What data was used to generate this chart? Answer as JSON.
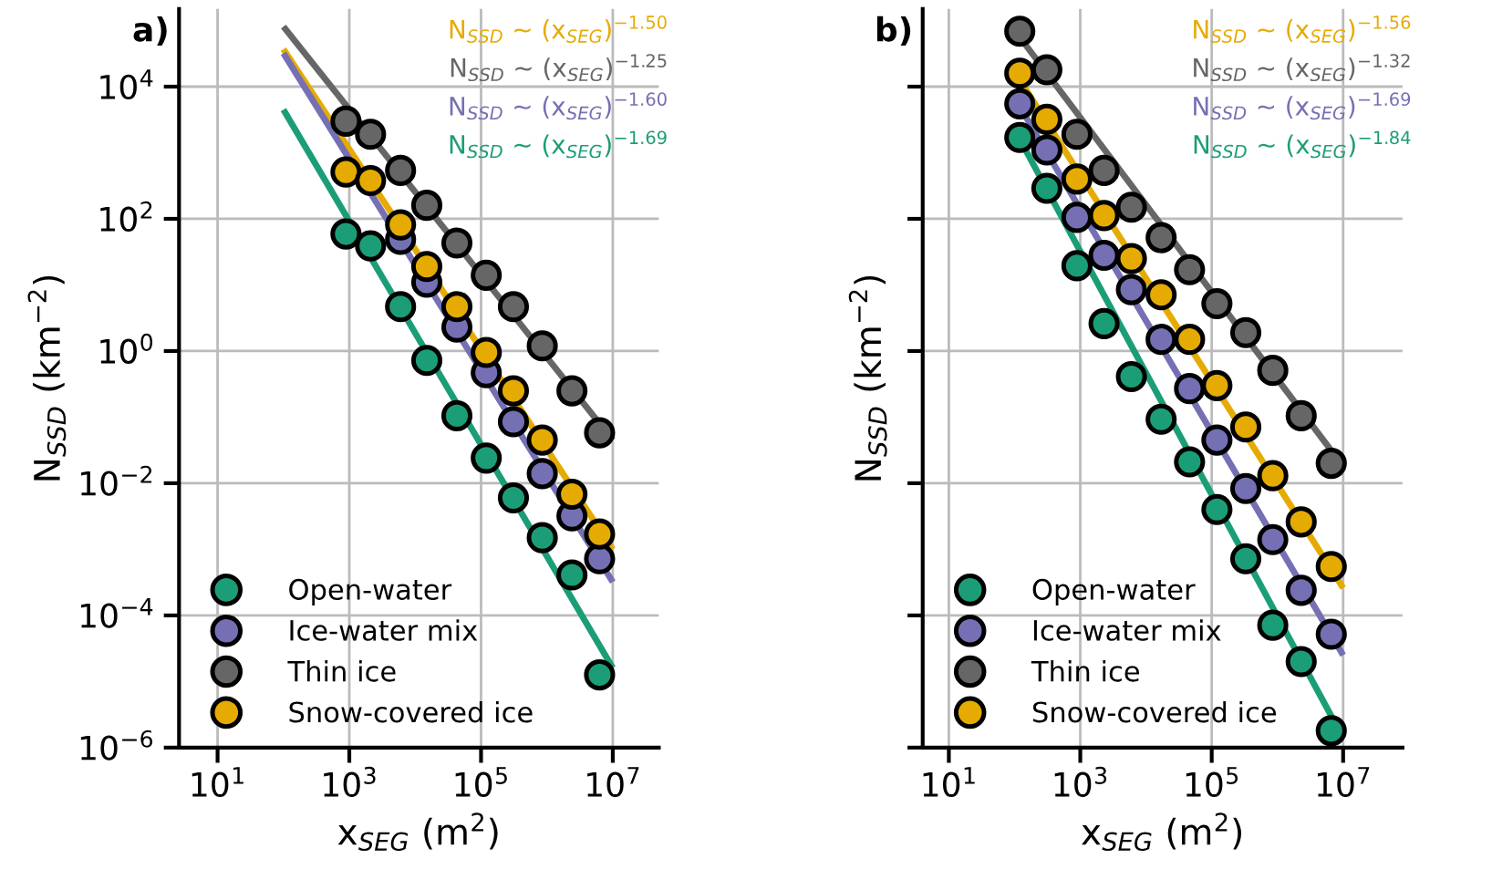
{
  "chart_data": [
    {
      "type": "scatter",
      "title": "a)",
      "xlabel": "x$_{SEG}$ (m$^{2}$)",
      "ylabel": "N$_{SSD}$ (km$^{−2}$)",
      "log": "xy",
      "grid": true,
      "legend": "bottom left",
      "marker": "circle",
      "x": [
        890,
        2100,
        6000,
        15000,
        43000,
        120000,
        310000,
        850000,
        2400000,
        6300000
      ],
      "xlim": [
        2.6,
        50000000
      ],
      "ylim": [
        1e-06,
        150000
      ],
      "xticks": [
        {
          "value": 10,
          "label": "10$^{1}$"
        },
        {
          "value": 1000,
          "label": "10$^{3}$"
        },
        {
          "value": 100000,
          "label": "10$^{5}$"
        },
        {
          "value": 10000000,
          "label": "10$^{7}$"
        }
      ],
      "yticks": [
        {
          "value": 1e-06,
          "label": "10$^{−6}$"
        },
        {
          "value": 0.0001,
          "label": "10$^{−4}$"
        },
        {
          "value": 0.01,
          "label": "10$^{−2}$"
        },
        {
          "value": 1,
          "label": "10$^{0}$"
        },
        {
          "value": 100,
          "label": "10$^{2}$"
        },
        {
          "value": 10000,
          "label": "10$^{4}$"
        }
      ],
      "series": [
        {
          "name": "Open-water",
          "color": "#1b9e77",
          "values": [
            59,
            39,
            4.7,
            0.72,
            0.105,
            0.024,
            0.006,
            0.0015,
            0.00041,
            1.26e-05
          ]
        },
        {
          "name": "Ice-water mix",
          "color": "#7570b3",
          "values": [
            null,
            null,
            49,
            11,
            2.3,
            0.47,
            0.085,
            0.014,
            0.0032,
            0.00072
          ]
        },
        {
          "name": "Thin ice",
          "color": "#666666",
          "values": [
            3000,
            1900,
            540,
            160,
            43,
            14,
            4.7,
            1.2,
            0.25,
            0.058
          ]
        },
        {
          "name": "Snow-covered ice",
          "color": "#e6ab02",
          "values": [
            510,
            380,
            81,
            19,
            4.7,
            0.95,
            0.25,
            0.045,
            0.0068,
            0.0017
          ]
        },
        {
          "type": "line",
          "marker": "none",
          "color": "#e6ab02",
          "x": [
            100,
            10000000
          ],
          "values": [
            37000,
            0.001
          ]
        },
        {
          "type": "line",
          "marker": "none",
          "color": "#666666",
          "x": [
            100,
            10000000
          ],
          "values": [
            81000,
            0.045
          ]
        },
        {
          "type": "line",
          "marker": "none",
          "color": "#7570b3",
          "x": [
            100,
            10000000
          ],
          "values": [
            32000,
            0.00032
          ]
        },
        {
          "type": "line",
          "marker": "none",
          "color": "#1b9e77",
          "x": [
            100,
            10000000
          ],
          "values": [
            4500,
            1.6e-05
          ]
        }
      ],
      "annotations": [
        "N$_{SSD}$ ~ (x$_{SEG}$)$^{−1.50}$",
        "N$_{SSD}$ ~ (x$_{SEG}$)$^{−1.25}$",
        "N$_{SSD}$ ~ (x$_{SEG}$)$^{−1.60}$",
        "N$_{SSD}$ ~ (x$_{SEG}$)$^{−1.69}$"
      ]
    },
    {
      "type": "scatter",
      "title": "b)",
      "xlabel": "x$_{SEG}$ (m$^{2}$)",
      "ylabel": "N$_{SSD}$ (km$^{−2}$)",
      "log": "xy",
      "grid": true,
      "legend": "bottom left",
      "marker": "circle",
      "tick_labels": "x",
      "x": [
        120,
        310,
        890,
        2300,
        6000,
        17000,
        46000,
        120000,
        330000,
        850000,
        2300000,
        6600000
      ],
      "xlim": [
        4,
        80000000
      ],
      "ylim": [
        1e-06,
        150000
      ],
      "xticks": [
        {
          "value": 10,
          "label": "10$^{1}$"
        },
        {
          "value": 1000,
          "label": "10$^{3}$"
        },
        {
          "value": 100000,
          "label": "10$^{5}$"
        },
        {
          "value": 10000000,
          "label": "10$^{7}$"
        }
      ],
      "yticks": [
        {
          "value": 1e-06,
          "label": null
        },
        {
          "value": 0.0001,
          "label": null
        },
        {
          "value": 0.01,
          "label": null
        },
        {
          "value": 1,
          "label": null
        },
        {
          "value": 100,
          "label": null
        },
        {
          "value": 10000,
          "label": null
        }
      ],
      "series": [
        {
          "name": "Open-water",
          "color": "#1b9e77",
          "values": [
            1700,
            290,
            19.5,
            2.6,
            0.41,
            0.093,
            0.021,
            0.004,
            0.00072,
            7.1e-05,
            2e-05,
            1.8e-06
          ]
        },
        {
          "name": "Ice-water mix",
          "color": "#7570b3",
          "values": [
            5500,
            1100,
            105,
            28,
            8.5,
            1.5,
            0.27,
            0.045,
            0.0083,
            0.0014,
            0.00024,
            5.2e-05
          ]
        },
        {
          "name": "Thin ice",
          "color": "#666666",
          "values": [
            69000,
            18000,
            1900,
            540,
            150,
            52,
            17,
            5.2,
            1.9,
            0.51,
            0.105,
            0.02
          ]
        },
        {
          "name": "Snow-covered ice",
          "color": "#e6ab02",
          "values": [
            16000,
            3200,
            400,
            112,
            25,
            7.1,
            1.5,
            0.3,
            0.071,
            0.013,
            0.0026,
            0.00055
          ]
        },
        {
          "type": "line",
          "marker": "none",
          "color": "#e6ab02",
          "x": [
            120,
            10000000
          ],
          "values": [
            12600,
            0.00026
          ]
        },
        {
          "type": "line",
          "marker": "none",
          "color": "#666666",
          "x": [
            120,
            10000000
          ],
          "values": [
            56000,
            0.018
          ]
        },
        {
          "type": "line",
          "marker": "none",
          "color": "#7570b3",
          "x": [
            120,
            10000000
          ],
          "values": [
            5000,
            2.5e-05
          ]
        },
        {
          "type": "line",
          "marker": "none",
          "color": "#1b9e77",
          "x": [
            120,
            10000000
          ],
          "values": [
            1600,
            1.4e-06
          ]
        }
      ],
      "annotations": [
        "N$_{SSD}$ ~ (x$_{SEG}$)$^{−1.56}$",
        "N$_{SSD}$ ~ (x$_{SEG}$)$^{−1.32}$",
        "N$_{SSD}$ ~ (x$_{SEG}$)$^{−1.69}$",
        "N$_{SSD}$ ~ (x$_{SEG}$)$^{−1.84}$"
      ]
    }
  ]
}
